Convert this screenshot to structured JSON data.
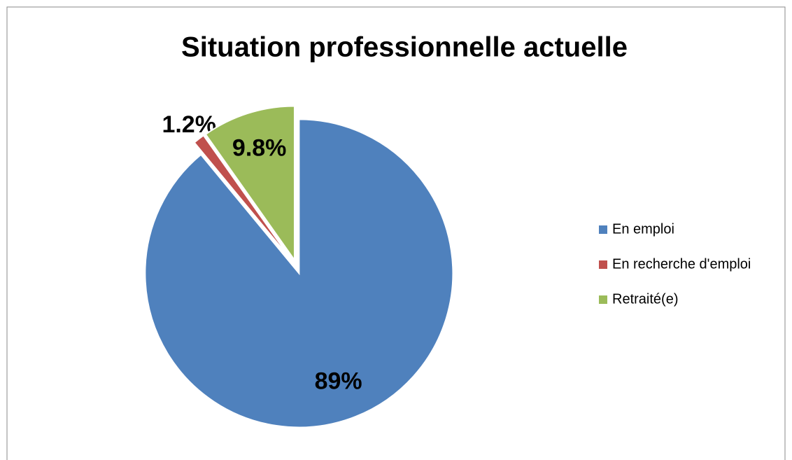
{
  "chart_data": {
    "type": "pie",
    "title": "Situation professionnelle actuelle",
    "categories": [
      "En emploi",
      "En recherche d'emploi",
      "Retraité(e)"
    ],
    "values": [
      89,
      1.2,
      9.8
    ],
    "value_labels": [
      "89%",
      "1.2%",
      "9.8%"
    ],
    "colors": [
      "#4f81bd",
      "#c0504d",
      "#9bbb59"
    ],
    "legend": "right"
  }
}
